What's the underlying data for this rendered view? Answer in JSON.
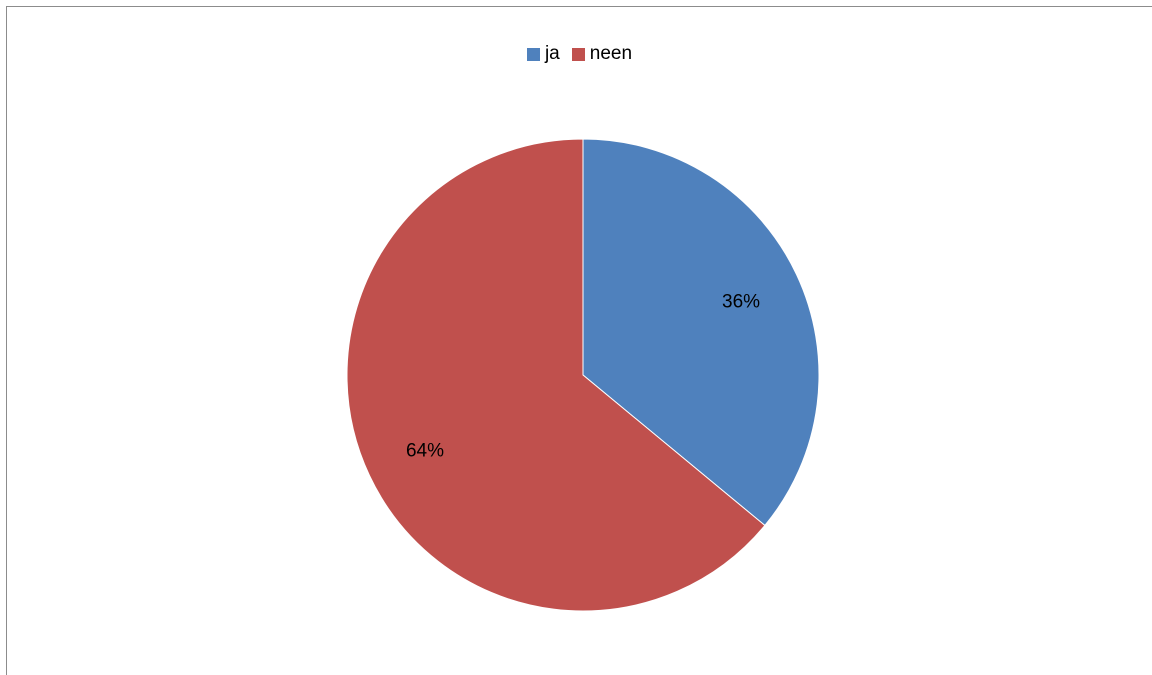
{
  "chart_data": {
    "type": "pie",
    "categories": [
      "ja",
      "neen"
    ],
    "values": [
      36,
      64
    ],
    "data_labels": [
      "36%",
      "64%"
    ],
    "colors": [
      "#4F81BD",
      "#C0504D"
    ],
    "legend_position": "top"
  }
}
